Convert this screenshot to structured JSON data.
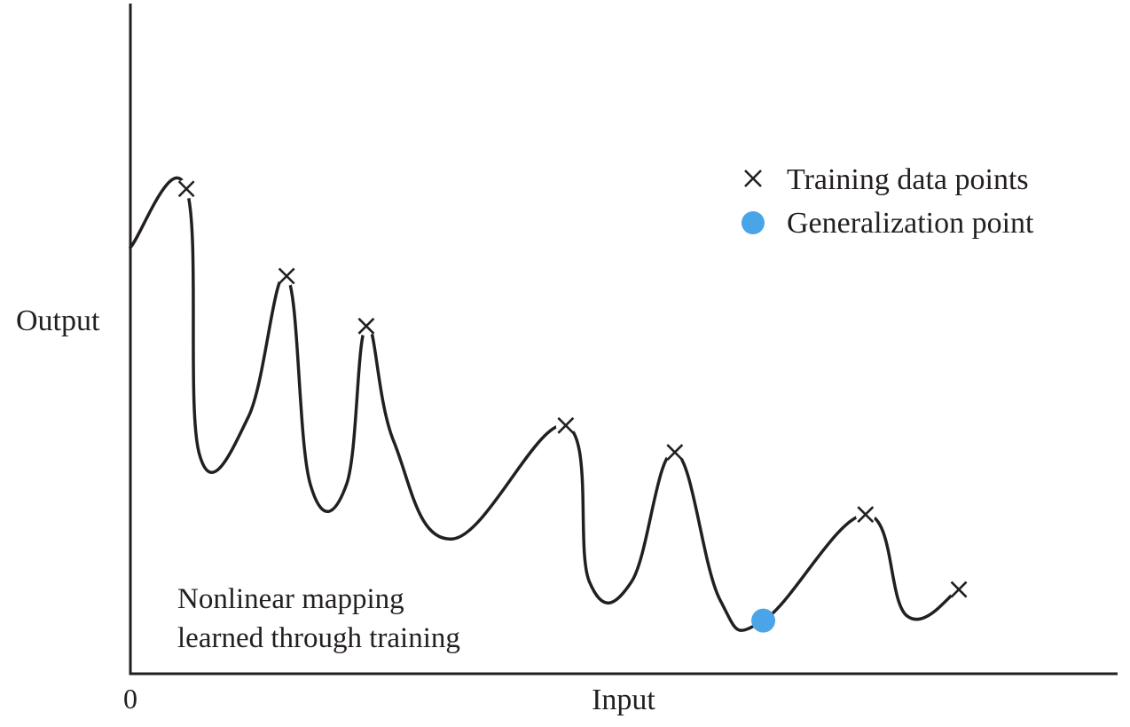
{
  "chart_data": {
    "type": "line",
    "title": "",
    "xlabel": "Input",
    "ylabel": "Output",
    "x_tick_labels": [
      "0"
    ],
    "legend": {
      "placement": "top-right",
      "entries": [
        {
          "label": "Training data points",
          "marker": "x",
          "color": "#231f20"
        },
        {
          "label": "Generalization point",
          "marker": "circle",
          "color": "#4aa5e8"
        }
      ]
    },
    "annotation": {
      "lines": [
        "Nonlinear mapping",
        "learned through training"
      ]
    },
    "training_points": [
      {
        "x": 0.057,
        "y": 0.734
      },
      {
        "x": 0.159,
        "y": 0.591
      },
      {
        "x": 0.24,
        "y": 0.509
      },
      {
        "x": 0.443,
        "y": 0.346
      },
      {
        "x": 0.554,
        "y": 0.302
      },
      {
        "x": 0.748,
        "y": 0.2
      },
      {
        "x": 0.843,
        "y": 0.077
      }
    ],
    "generalization_point": {
      "x": 0.644,
      "y": 0.026
    },
    "curve": [
      {
        "x": 0.0,
        "y": 0.638
      },
      {
        "x": 0.057,
        "y": 0.734
      },
      {
        "x": 0.07,
        "y": 0.3
      },
      {
        "x": 0.12,
        "y": 0.36
      },
      {
        "x": 0.159,
        "y": 0.591
      },
      {
        "x": 0.183,
        "y": 0.25
      },
      {
        "x": 0.22,
        "y": 0.25
      },
      {
        "x": 0.24,
        "y": 0.509
      },
      {
        "x": 0.268,
        "y": 0.32
      },
      {
        "x": 0.328,
        "y": 0.16
      },
      {
        "x": 0.443,
        "y": 0.346
      },
      {
        "x": 0.467,
        "y": 0.09
      },
      {
        "x": 0.51,
        "y": 0.09
      },
      {
        "x": 0.554,
        "y": 0.302
      },
      {
        "x": 0.6,
        "y": 0.06
      },
      {
        "x": 0.644,
        "y": 0.026
      },
      {
        "x": 0.748,
        "y": 0.2
      },
      {
        "x": 0.79,
        "y": 0.034
      },
      {
        "x": 0.843,
        "y": 0.077
      }
    ],
    "xlim": [
      0,
      1
    ],
    "ylim": [
      0,
      1
    ],
    "grid": false,
    "colors": {
      "line": "#231f20",
      "axis": "#231f20",
      "generalization": "#4aa5e8"
    }
  }
}
